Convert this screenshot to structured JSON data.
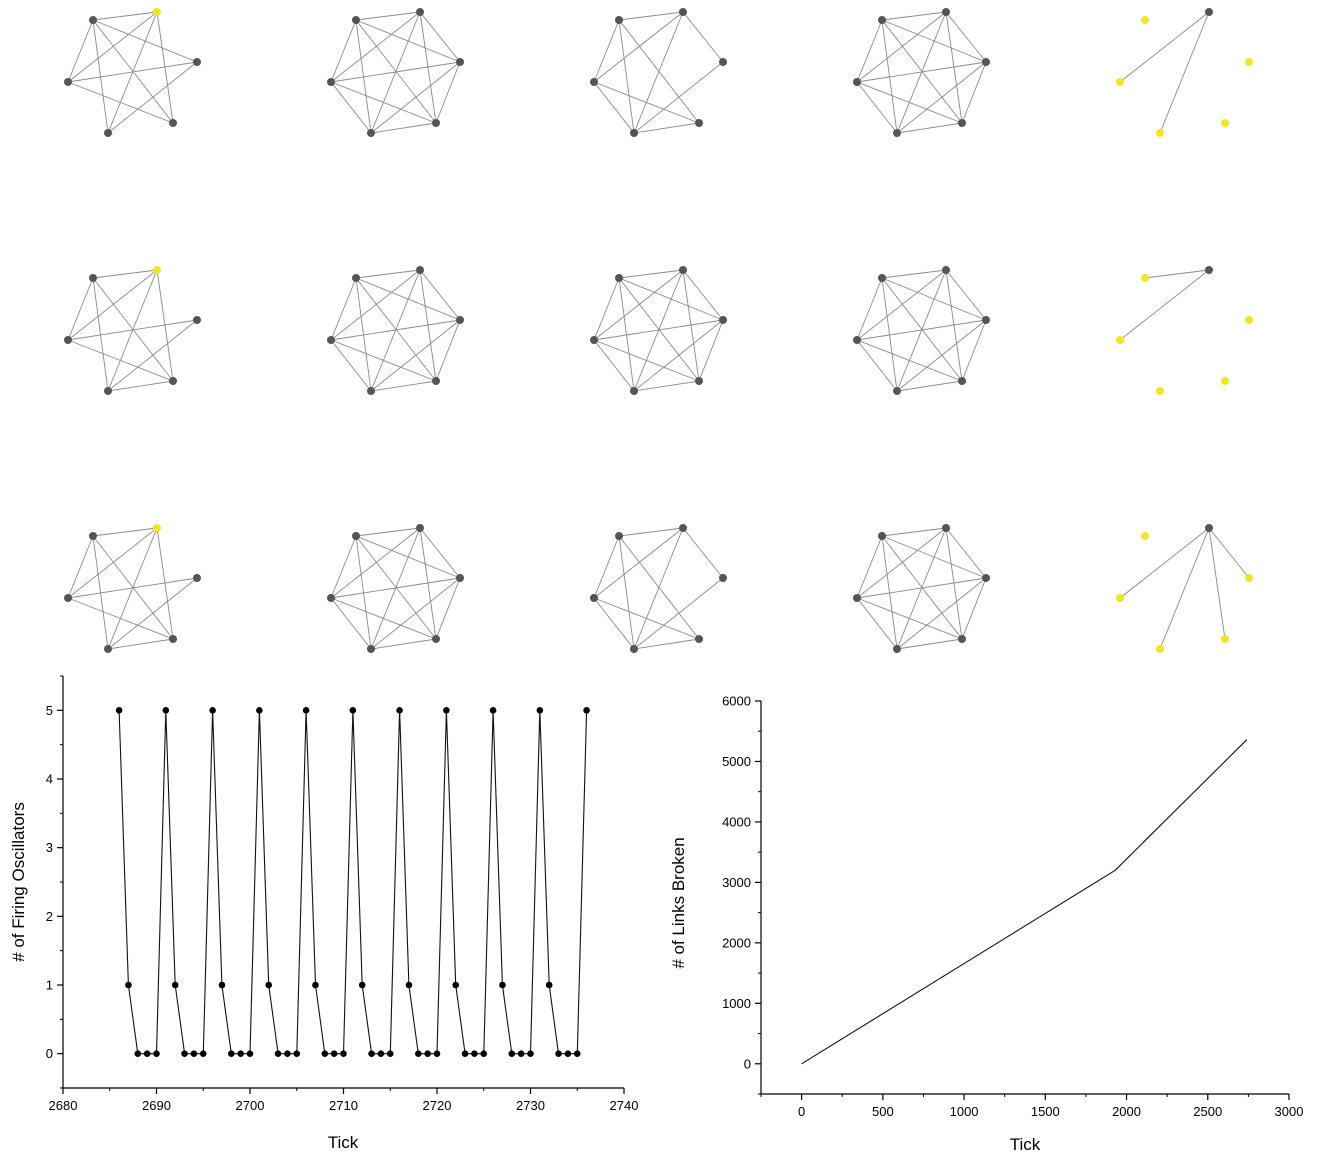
{
  "network_colors": {
    "node_default": "#555555",
    "node_firing": "#f2e623",
    "edge": "#8a8a8a"
  },
  "network_grid": {
    "rows": 3,
    "cols": 5,
    "panels": [
      {
        "firing": [
          1
        ],
        "edges": [
          [
            0,
            1
          ],
          [
            0,
            2
          ],
          [
            0,
            3
          ],
          [
            0,
            4
          ],
          [
            0,
            5
          ],
          [
            1,
            3
          ],
          [
            1,
            4
          ],
          [
            1,
            5
          ],
          [
            2,
            4
          ],
          [
            2,
            5
          ],
          [
            3,
            5
          ]
        ]
      },
      {
        "firing": [],
        "edges": [
          [
            0,
            1
          ],
          [
            0,
            2
          ],
          [
            0,
            3
          ],
          [
            0,
            4
          ],
          [
            0,
            5
          ],
          [
            1,
            2
          ],
          [
            1,
            3
          ],
          [
            1,
            4
          ],
          [
            1,
            5
          ],
          [
            2,
            3
          ],
          [
            2,
            4
          ],
          [
            2,
            5
          ],
          [
            3,
            4
          ],
          [
            3,
            5
          ],
          [
            4,
            5
          ]
        ]
      },
      {
        "firing": [],
        "edges": [
          [
            0,
            1
          ],
          [
            0,
            3
          ],
          [
            0,
            4
          ],
          [
            0,
            5
          ],
          [
            1,
            2
          ],
          [
            1,
            4
          ],
          [
            1,
            5
          ],
          [
            2,
            4
          ],
          [
            3,
            4
          ],
          [
            3,
            5
          ],
          [
            4,
            5
          ]
        ]
      },
      {
        "firing": [],
        "edges": [
          [
            0,
            1
          ],
          [
            0,
            2
          ],
          [
            0,
            3
          ],
          [
            0,
            4
          ],
          [
            0,
            5
          ],
          [
            1,
            2
          ],
          [
            1,
            3
          ],
          [
            1,
            4
          ],
          [
            1,
            5
          ],
          [
            2,
            3
          ],
          [
            2,
            4
          ],
          [
            2,
            5
          ],
          [
            3,
            4
          ],
          [
            3,
            5
          ],
          [
            4,
            5
          ]
        ]
      },
      {
        "firing": [
          0,
          2,
          3,
          4,
          5
        ],
        "edges": [
          [
            1,
            4
          ],
          [
            1,
            5
          ]
        ]
      },
      {
        "firing": [
          1
        ],
        "edges": [
          [
            0,
            1
          ],
          [
            0,
            3
          ],
          [
            0,
            4
          ],
          [
            0,
            5
          ],
          [
            1,
            3
          ],
          [
            1,
            4
          ],
          [
            1,
            5
          ],
          [
            2,
            4
          ],
          [
            2,
            5
          ],
          [
            3,
            4
          ],
          [
            3,
            5
          ]
        ]
      },
      {
        "firing": [],
        "edges": [
          [
            0,
            1
          ],
          [
            0,
            2
          ],
          [
            0,
            3
          ],
          [
            0,
            4
          ],
          [
            0,
            5
          ],
          [
            1,
            2
          ],
          [
            1,
            3
          ],
          [
            1,
            4
          ],
          [
            1,
            5
          ],
          [
            2,
            3
          ],
          [
            2,
            4
          ],
          [
            2,
            5
          ],
          [
            3,
            4
          ],
          [
            3,
            5
          ],
          [
            4,
            5
          ]
        ]
      },
      {
        "firing": [],
        "edges": [
          [
            0,
            1
          ],
          [
            0,
            2
          ],
          [
            0,
            3
          ],
          [
            0,
            4
          ],
          [
            0,
            5
          ],
          [
            1,
            2
          ],
          [
            1,
            3
          ],
          [
            1,
            4
          ],
          [
            1,
            5
          ],
          [
            2,
            3
          ],
          [
            2,
            4
          ],
          [
            2,
            5
          ],
          [
            3,
            4
          ],
          [
            3,
            5
          ],
          [
            4,
            5
          ]
        ]
      },
      {
        "firing": [],
        "edges": [
          [
            0,
            1
          ],
          [
            0,
            2
          ],
          [
            0,
            3
          ],
          [
            0,
            4
          ],
          [
            0,
            5
          ],
          [
            1,
            2
          ],
          [
            1,
            3
          ],
          [
            1,
            4
          ],
          [
            1,
            5
          ],
          [
            2,
            3
          ],
          [
            2,
            4
          ],
          [
            2,
            5
          ],
          [
            3,
            4
          ],
          [
            3,
            5
          ],
          [
            4,
            5
          ]
        ]
      },
      {
        "firing": [
          0,
          2,
          3,
          4,
          5
        ],
        "edges": [
          [
            0,
            1
          ],
          [
            5,
            1
          ]
        ]
      },
      {
        "firing": [
          1
        ],
        "edges": [
          [
            0,
            1
          ],
          [
            0,
            3
          ],
          [
            0,
            4
          ],
          [
            0,
            5
          ],
          [
            1,
            3
          ],
          [
            1,
            4
          ],
          [
            1,
            5
          ],
          [
            2,
            4
          ],
          [
            2,
            5
          ],
          [
            3,
            4
          ],
          [
            3,
            5
          ]
        ]
      },
      {
        "firing": [],
        "edges": [
          [
            0,
            1
          ],
          [
            0,
            2
          ],
          [
            0,
            3
          ],
          [
            0,
            4
          ],
          [
            0,
            5
          ],
          [
            1,
            2
          ],
          [
            1,
            3
          ],
          [
            1,
            4
          ],
          [
            1,
            5
          ],
          [
            2,
            3
          ],
          [
            2,
            4
          ],
          [
            2,
            5
          ],
          [
            3,
            4
          ],
          [
            3,
            5
          ],
          [
            4,
            5
          ]
        ]
      },
      {
        "firing": [],
        "edges": [
          [
            0,
            1
          ],
          [
            0,
            3
          ],
          [
            0,
            4
          ],
          [
            0,
            5
          ],
          [
            1,
            2
          ],
          [
            1,
            4
          ],
          [
            1,
            5
          ],
          [
            2,
            4
          ],
          [
            3,
            4
          ],
          [
            3,
            5
          ],
          [
            4,
            5
          ]
        ]
      },
      {
        "firing": [],
        "edges": [
          [
            0,
            1
          ],
          [
            0,
            2
          ],
          [
            0,
            3
          ],
          [
            0,
            4
          ],
          [
            0,
            5
          ],
          [
            1,
            2
          ],
          [
            1,
            3
          ],
          [
            1,
            4
          ],
          [
            1,
            5
          ],
          [
            2,
            3
          ],
          [
            2,
            4
          ],
          [
            2,
            5
          ],
          [
            3,
            4
          ],
          [
            3,
            5
          ],
          [
            4,
            5
          ]
        ]
      },
      {
        "firing": [
          0,
          2,
          3,
          4,
          5
        ],
        "edges": [
          [
            1,
            2
          ],
          [
            1,
            3
          ],
          [
            1,
            4
          ],
          [
            1,
            5
          ]
        ]
      }
    ]
  },
  "chart_data": [
    {
      "type": "line",
      "xlabel": "Tick",
      "ylabel": "# of Firing Oscillators",
      "xlim": [
        2680,
        2740
      ],
      "ylim": [
        -0.5,
        5.5
      ],
      "xticks": [
        2680,
        2690,
        2700,
        2710,
        2720,
        2730,
        2740
      ],
      "yticks": [
        0,
        1,
        2,
        3,
        4,
        5
      ],
      "markers": true,
      "x": [
        2686,
        2687,
        2688,
        2689,
        2690,
        2691,
        2692,
        2693,
        2694,
        2695,
        2696,
        2697,
        2698,
        2699,
        2700,
        2701,
        2702,
        2703,
        2704,
        2705,
        2706,
        2707,
        2708,
        2709,
        2710,
        2711,
        2712,
        2713,
        2714,
        2715,
        2716,
        2717,
        2718,
        2719,
        2720,
        2721,
        2722,
        2723,
        2724,
        2725,
        2726,
        2727,
        2728,
        2729,
        2730,
        2731,
        2732,
        2733,
        2734,
        2735,
        2736
      ],
      "y": [
        5,
        1,
        0,
        0,
        0,
        5,
        1,
        0,
        0,
        0,
        5,
        1,
        0,
        0,
        0,
        5,
        1,
        0,
        0,
        0,
        5,
        1,
        0,
        0,
        0,
        5,
        1,
        0,
        0,
        0,
        5,
        1,
        0,
        0,
        0,
        5,
        1,
        0,
        0,
        0,
        5,
        1,
        0,
        0,
        0,
        5,
        1,
        0,
        0,
        0,
        5
      ]
    },
    {
      "type": "line",
      "xlabel": "Tick",
      "ylabel": "# of Links Broken",
      "xlim": [
        -250,
        3000
      ],
      "ylim": [
        -500,
        6000
      ],
      "xticks": [
        0,
        500,
        1000,
        1500,
        2000,
        2500,
        3000
      ],
      "yticks": [
        0,
        1000,
        2000,
        3000,
        4000,
        5000,
        6000
      ],
      "markers": false,
      "x": [
        0,
        1930,
        2740
      ],
      "y": [
        0,
        3200,
        5360
      ]
    }
  ]
}
